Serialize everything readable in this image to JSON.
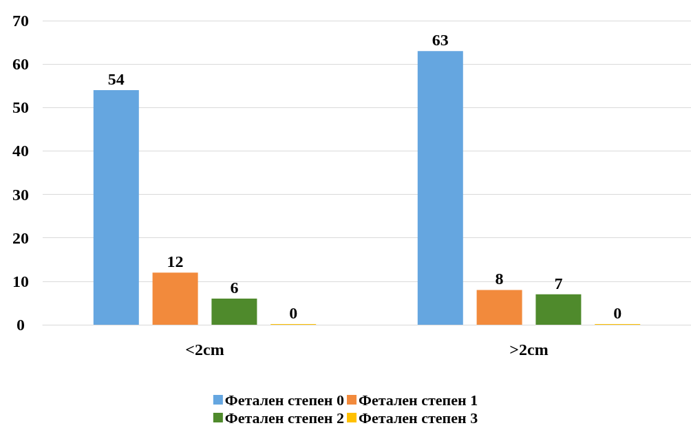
{
  "chart_data": {
    "type": "bar",
    "categories": [
      "<2cm",
      ">2cm"
    ],
    "series": [
      {
        "name": "Фетален степен 0",
        "color": "#65a6e0",
        "values": [
          54,
          63
        ]
      },
      {
        "name": "Фетален степен 1",
        "color": "#f28a3c",
        "values": [
          12,
          8
        ]
      },
      {
        "name": "Фетален степен 2",
        "color": "#4f8a2c",
        "values": [
          6,
          7
        ]
      },
      {
        "name": "Фетален степен 3",
        "color": "#ffc000",
        "values": [
          0,
          0
        ]
      }
    ],
    "ylim": [
      0,
      70
    ],
    "yticks": [
      0,
      10,
      20,
      30,
      40,
      50,
      60,
      70
    ],
    "grid": true,
    "legend": "bottom",
    "data_labels": true
  }
}
